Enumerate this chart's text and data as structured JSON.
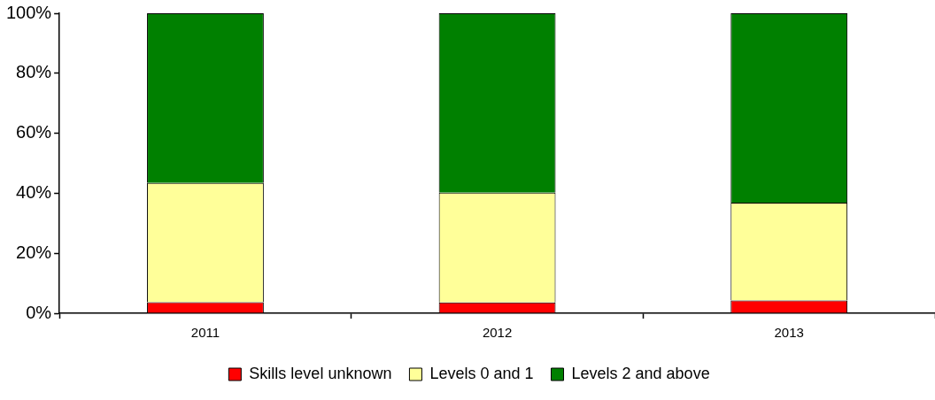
{
  "chart_data": {
    "type": "bar",
    "stacked": true,
    "categories": [
      "2011",
      "2012",
      "2013"
    ],
    "series": [
      {
        "name": "Skills level unknown",
        "color": "#ff0000",
        "values": [
          3.7,
          3.6,
          4.3
        ]
      },
      {
        "name": "Levels 0 and 1",
        "color": "#ffff99",
        "values": [
          39.7,
          36.6,
          32.6
        ]
      },
      {
        "name": "Levels 2 and above",
        "color": "#008000",
        "values": [
          56.6,
          59.8,
          63.1
        ]
      }
    ],
    "ylim": [
      0,
      100
    ],
    "yticks": [
      {
        "value": 0,
        "label": "0%"
      },
      {
        "value": 20,
        "label": "20%"
      },
      {
        "value": 40,
        "label": "40%"
      },
      {
        "value": 60,
        "label": "60%"
      },
      {
        "value": 80,
        "label": "80%"
      },
      {
        "value": 100,
        "label": "100%"
      }
    ],
    "grid": false,
    "legend": "bottom"
  }
}
